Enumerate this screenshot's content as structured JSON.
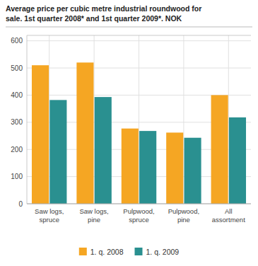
{
  "chart_data": {
    "type": "bar",
    "title": "Average price per cubic metre industrial roundwood for\nsale. 1st quarter 2008* and 1st quarter 2009*. NOK",
    "categories": [
      "Saw logs,\nspruce",
      "Saw logs,\npine",
      "Pulpwood,\nspruce",
      "Pulpwood,\npine",
      "All\nassortment"
    ],
    "series": [
      {
        "name": "1. q. 2008",
        "color": "#f5a623",
        "values": [
          510,
          520,
          277,
          262,
          400
        ]
      },
      {
        "name": "1. q. 2009",
        "color": "#2a9090",
        "values": [
          382,
          393,
          268,
          243,
          318
        ]
      }
    ],
    "ylim": [
      0,
      620
    ],
    "yticks": [
      0,
      100,
      200,
      300,
      400,
      500,
      600
    ],
    "grid": true,
    "legend": "bottom"
  }
}
